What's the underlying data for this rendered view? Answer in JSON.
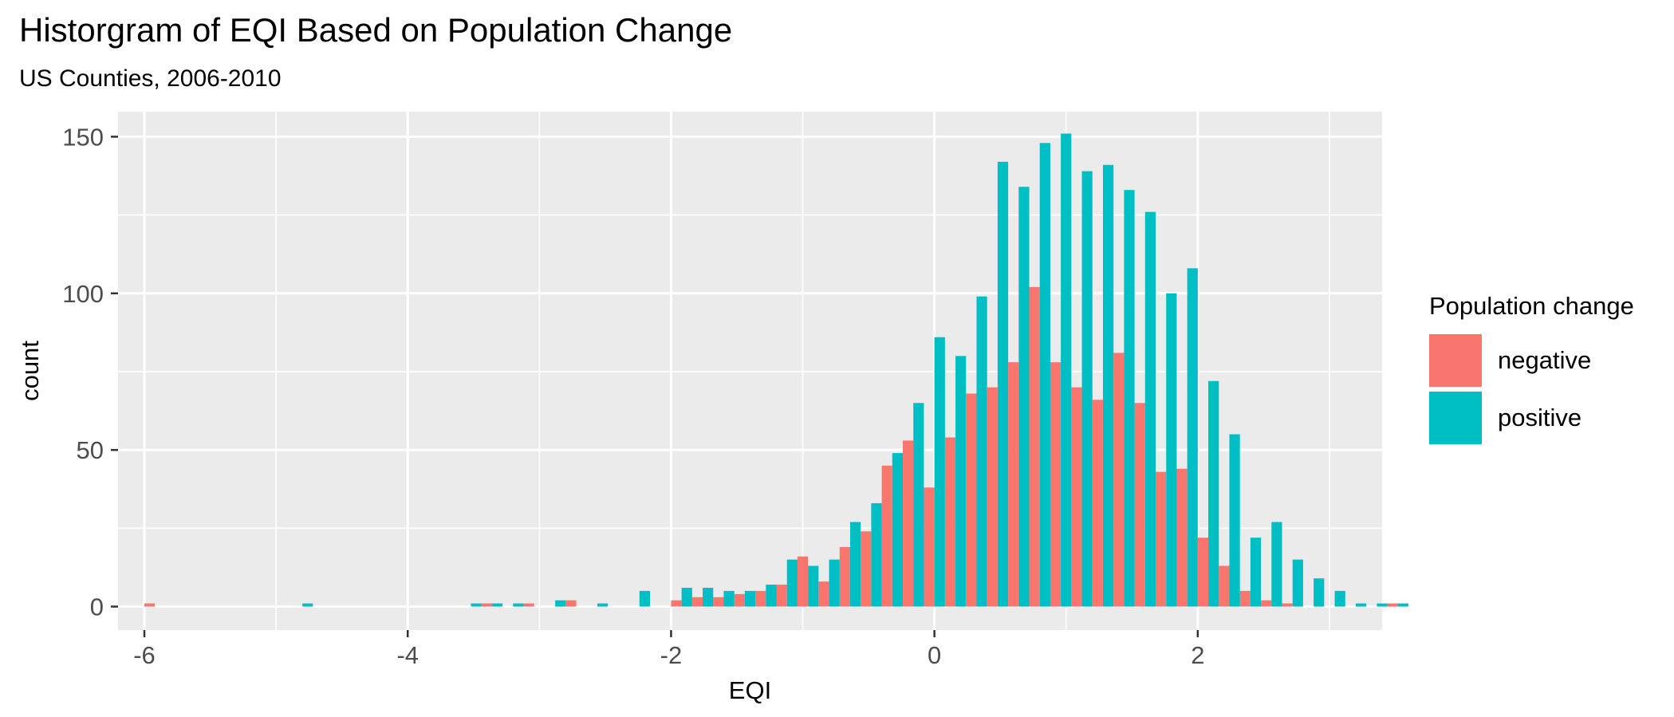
{
  "chart_data": {
    "type": "bar",
    "title": "Historgram of EQI Based on Population Change",
    "subtitle": "US Counties, 2006-2010",
    "xlabel": "EQI",
    "ylabel": "count",
    "xlim": [
      -6.2,
      3.4
    ],
    "ylim": [
      -7.5,
      158
    ],
    "bin_width": 0.16,
    "x_ticks": [
      -6,
      -4,
      -2,
      0,
      2
    ],
    "y_ticks": [
      0,
      50,
      100,
      150
    ],
    "grid": true,
    "legend": {
      "title": "Population change",
      "position": "right"
    },
    "series": [
      {
        "name": "negative",
        "color": "#F8766D",
        "values": [
          1,
          0,
          0,
          0,
          0,
          0,
          0,
          0,
          0,
          0,
          0,
          0,
          0,
          0,
          0,
          0,
          1,
          0,
          1,
          0,
          2,
          0,
          0,
          0,
          0,
          2,
          3,
          3,
          4,
          5,
          7,
          16,
          8,
          19,
          24,
          45,
          53,
          38,
          54,
          68,
          70,
          78,
          102,
          78,
          70,
          66,
          81,
          65,
          43,
          44,
          22,
          13,
          5,
          2,
          1,
          0,
          0,
          0,
          0,
          1,
          0
        ]
      },
      {
        "name": "positive",
        "color": "#00BFC4",
        "values": [
          0,
          0,
          0,
          0,
          0,
          0,
          0,
          1,
          0,
          0,
          0,
          0,
          0,
          0,
          0,
          1,
          1,
          1,
          0,
          2,
          0,
          1,
          0,
          5,
          0,
          6,
          6,
          5,
          5,
          7,
          15,
          13,
          15,
          27,
          33,
          49,
          65,
          86,
          80,
          99,
          142,
          134,
          148,
          151,
          139,
          141,
          133,
          126,
          100,
          108,
          72,
          55,
          22,
          27,
          15,
          9,
          5,
          1,
          1,
          1,
          0
        ]
      }
    ],
    "x_bins_start": -5.92
  }
}
